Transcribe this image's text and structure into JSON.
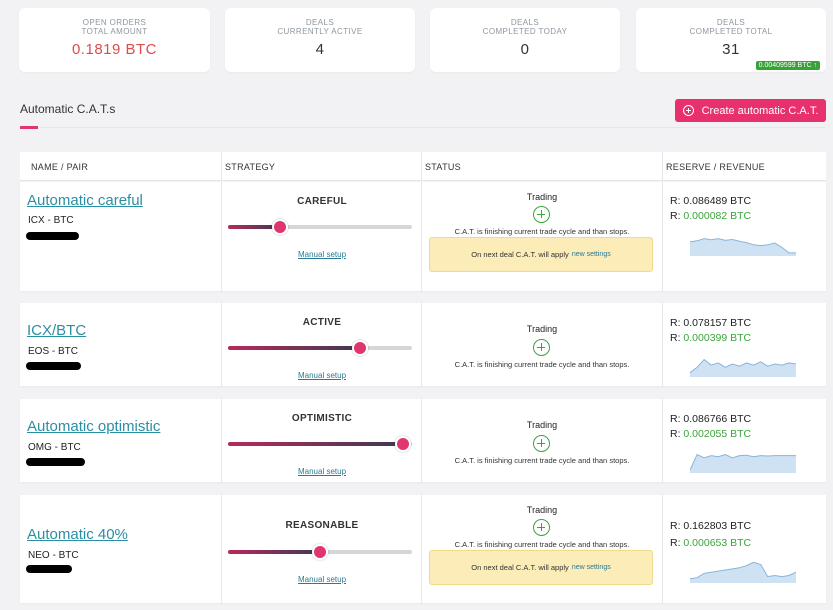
{
  "stats": [
    {
      "label_line1": "OPEN ORDERS",
      "label_line2": "TOTAL AMOUNT",
      "value": "0.1819 BTC"
    },
    {
      "label_line1": "DEALS",
      "label_line2": "CURRENTLY ACTIVE",
      "value": "4"
    },
    {
      "label_line1": "DEALS",
      "label_line2": "COMPLETED TODAY",
      "value": "0"
    },
    {
      "label_line1": "DEALS",
      "label_line2": "COMPLETED TOTAL",
      "value": "31",
      "badge": "0.00409599 BTC ↑"
    }
  ],
  "section_title": "Automatic C.A.T.s",
  "create_button_label": "Create automatic C.A.T.",
  "columns": [
    "NAME / PAIR",
    "STRATEGY",
    "STATUS",
    "RESERVE / REVENUE"
  ],
  "colors": {
    "accent": "#e8306d",
    "link": "#2a8fa4",
    "positive": "#3aa53a",
    "negative": "#e24a4a"
  },
  "cats": [
    {
      "name": "Automatic careful",
      "pair_base": "ICX",
      "pair_sep": " - ",
      "pair_quote": "BTC",
      "strategy": "CAREFUL",
      "slider_percent": 28,
      "manual_label": "Manual setup",
      "status": "Trading",
      "status_message": "C.A.T. is finishing current trade cycle and than stops.",
      "notice": "On next deal C.A.T. will apply",
      "notice_link": "new settings",
      "reserve_prefix": "R: ",
      "reserve": "0.086489 BTC",
      "revenue_prefix": "R: ",
      "revenue": "0.000082 BTC",
      "spark": [
        0.55,
        0.6,
        0.7,
        0.65,
        0.7,
        0.62,
        0.66,
        0.58,
        0.52,
        0.42,
        0.38,
        0.42,
        0.5,
        0.3,
        0.05,
        0.05
      ]
    },
    {
      "name": "ICX/BTC",
      "pair_base": "EOS",
      "pair_sep": " - ",
      "pair_quote": "BTC",
      "strategy": "ACTIVE",
      "slider_percent": 72,
      "manual_label": "Manual setup",
      "status": "Trading",
      "status_message": "C.A.T. is finishing current trade cycle and than stops.",
      "reserve_prefix": "R: ",
      "reserve": "0.078157 BTC",
      "revenue_prefix": "R: ",
      "revenue": "0.000399 BTC",
      "spark": [
        0.1,
        0.35,
        0.7,
        0.45,
        0.55,
        0.35,
        0.5,
        0.4,
        0.55,
        0.45,
        0.6,
        0.4,
        0.5,
        0.45,
        0.55,
        0.5
      ]
    },
    {
      "name": "Automatic optimistic",
      "pair_base": "OMG",
      "pair_sep": " - ",
      "pair_quote": "BTC",
      "strategy": "OPTIMISTIC",
      "slider_percent": 95,
      "manual_label": "Manual setup",
      "status": "Trading",
      "status_message": "C.A.T. is finishing current trade cycle and than stops.",
      "reserve_prefix": "R: ",
      "reserve": "0.086766 BTC",
      "revenue_prefix": "R: ",
      "revenue": "0.002055 BTC",
      "spark": [
        0.05,
        0.75,
        0.6,
        0.7,
        0.65,
        0.75,
        0.6,
        0.7,
        0.72,
        0.65,
        0.7,
        0.68,
        0.7,
        0.7,
        0.7,
        0.7
      ]
    },
    {
      "name": "Automatic 40%",
      "pair_base": "NEO",
      "pair_sep": " - ",
      "pair_quote": "BTC",
      "strategy": "REASONABLE",
      "slider_percent": 50,
      "manual_label": "Manual setup",
      "status": "Trading",
      "status_message": "C.A.T. is finishing current trade cycle and than stops.",
      "notice": "On next deal C.A.T. will apply",
      "notice_link": "new settings",
      "reserve_prefix": "R: ",
      "reserve": "0.162803 BTC",
      "revenue_prefix": "R: ",
      "revenue": "0.000653 BTC",
      "spark": [
        0.1,
        0.15,
        0.35,
        0.4,
        0.45,
        0.5,
        0.55,
        0.6,
        0.7,
        0.85,
        0.75,
        0.2,
        0.25,
        0.2,
        0.25,
        0.4
      ]
    }
  ]
}
